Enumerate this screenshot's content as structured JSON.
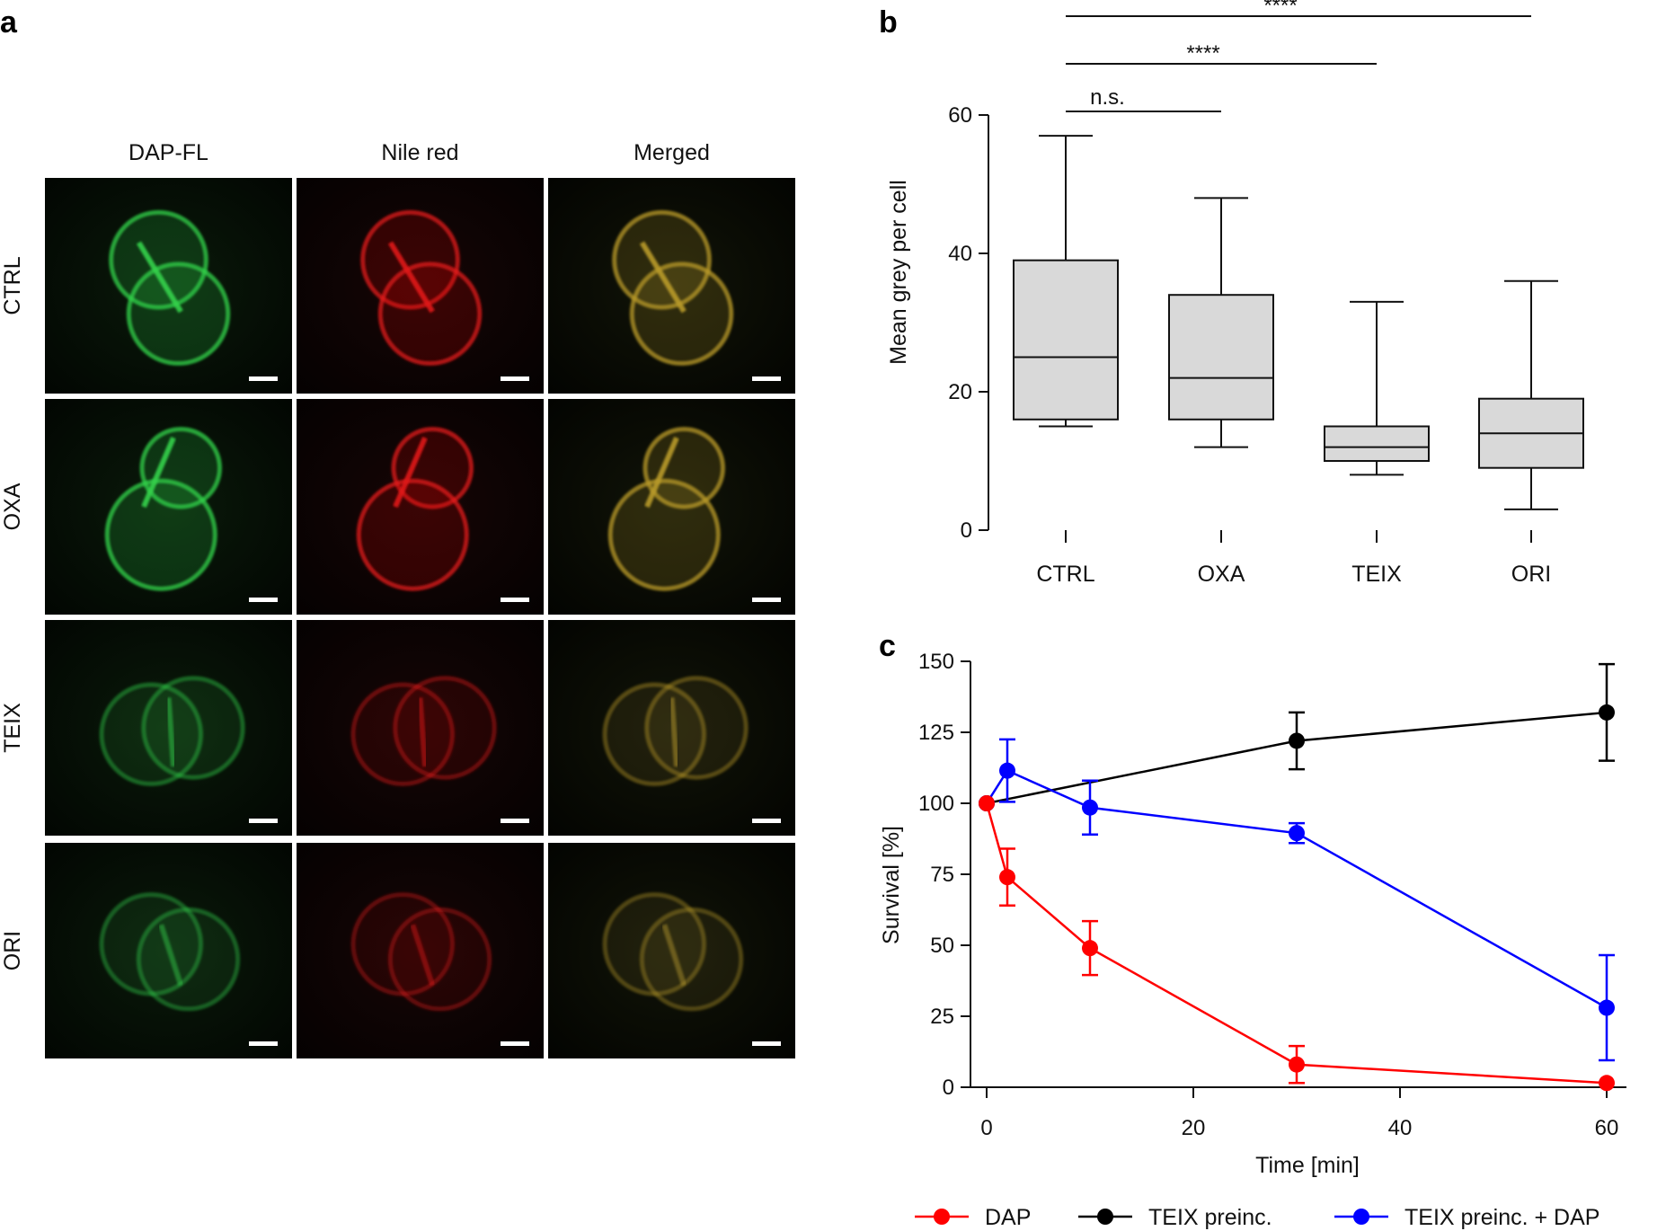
{
  "panel_a": {
    "letter": "a",
    "column_labels": [
      "DAP-FL",
      "Nile red",
      "Merged"
    ],
    "row_labels": [
      "CTRL",
      "OXA",
      "TEIX",
      "ORI"
    ],
    "channels": [
      {
        "name": "DAP-FL",
        "color": "#33d24a"
      },
      {
        "name": "Nile red",
        "color": "#e01818"
      },
      {
        "name": "Merged",
        "color": "#b89a2a"
      }
    ]
  },
  "chart_data": [
    {
      "panel": "b",
      "type": "box",
      "ylabel": "Mean grey per cell",
      "ylim": [
        0,
        60
      ],
      "yticks": [
        0,
        20,
        40,
        60
      ],
      "categories": [
        "CTRL",
        "OXA",
        "TEIX",
        "ORI"
      ],
      "boxes": [
        {
          "category": "CTRL",
          "min": 15,
          "q1": 16,
          "median": 25,
          "q3": 39,
          "max": 57
        },
        {
          "category": "OXA",
          "min": 12,
          "q1": 16,
          "median": 22,
          "q3": 34,
          "max": 48
        },
        {
          "category": "TEIX",
          "min": 8,
          "q1": 10,
          "median": 12,
          "q3": 15,
          "max": 33
        },
        {
          "category": "ORI",
          "min": 3,
          "q1": 9,
          "median": 14,
          "q3": 19,
          "max": 36
        }
      ],
      "box_color": "#d9d9d9",
      "significance": [
        {
          "from": "CTRL",
          "to": "ORI",
          "label": "****"
        },
        {
          "from": "CTRL",
          "to": "TEIX",
          "label": "****"
        },
        {
          "from": "CTRL",
          "to": "OXA",
          "label": "n.s."
        }
      ]
    },
    {
      "panel": "c",
      "type": "line",
      "xlabel": "Time [min]",
      "ylabel": "Survival [%]",
      "xlim": [
        0,
        60
      ],
      "ylim": [
        0,
        150
      ],
      "xticks": [
        0,
        20,
        40,
        60
      ],
      "yticks": [
        0,
        25,
        50,
        75,
        100,
        125,
        150
      ],
      "legend_position": "bottom",
      "series": [
        {
          "name": "DAP",
          "color": "#ff0000",
          "points": [
            {
              "x": 0,
              "y": 100,
              "err": 0
            },
            {
              "x": 2,
              "y": 74,
              "err": 10
            },
            {
              "x": 10,
              "y": 49,
              "err": 9.5
            },
            {
              "x": 30,
              "y": 8,
              "err": 6.5
            },
            {
              "x": 60,
              "y": 1.5,
              "err": 0
            }
          ]
        },
        {
          "name": "TEIX preinc.",
          "color": "#000000",
          "points": [
            {
              "x": 0,
              "y": 100,
              "err": 0
            },
            {
              "x": 30,
              "y": 122,
              "err": 10
            },
            {
              "x": 60,
              "y": 132,
              "err": 17
            }
          ]
        },
        {
          "name": "TEIX preinc. + DAP",
          "color": "#0000ff",
          "points": [
            {
              "x": 0,
              "y": 100,
              "err": 0
            },
            {
              "x": 2,
              "y": 111.5,
              "err": 11
            },
            {
              "x": 10,
              "y": 98.5,
              "err": 9.5
            },
            {
              "x": 30,
              "y": 89.5,
              "err": 3.5
            },
            {
              "x": 60,
              "y": 28,
              "err": 18.5
            }
          ]
        }
      ]
    }
  ]
}
